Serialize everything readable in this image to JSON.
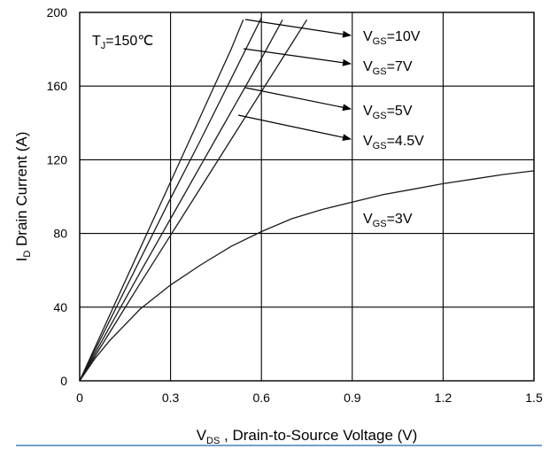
{
  "chart_data": {
    "type": "line",
    "xlabel": {
      "main": "V",
      "sub": "DS",
      "rest": " , Drain-to-Source Voltage  (V)"
    },
    "ylabel": {
      "main": "I",
      "sub": "D",
      "rest": " Drain Current (A)"
    },
    "xlim": [
      0,
      1.5
    ],
    "ylim": [
      0,
      200
    ],
    "xticks": [
      "0",
      "0.3",
      "0.6",
      "0.9",
      "1.2",
      "1.5"
    ],
    "yticks": [
      "0",
      "40",
      "80",
      "120",
      "160",
      "200"
    ],
    "grid": true,
    "condition": {
      "main": "T",
      "sub": "J",
      "rest": "=150℃"
    },
    "series": [
      {
        "name": "VGS=10V",
        "label": {
          "main": "V",
          "sub": "GS",
          "rest": "=10V"
        },
        "points": [
          [
            0,
            0
          ],
          [
            0.1,
            36
          ],
          [
            0.2,
            72
          ],
          [
            0.3,
            108
          ],
          [
            0.4,
            144
          ],
          [
            0.5,
            180
          ],
          [
            0.54,
            196
          ]
        ]
      },
      {
        "name": "VGS=7V",
        "label": {
          "main": "V",
          "sub": "GS",
          "rest": "=7V"
        },
        "points": [
          [
            0,
            0
          ],
          [
            0.1,
            33
          ],
          [
            0.2,
            66
          ],
          [
            0.3,
            99
          ],
          [
            0.4,
            131
          ],
          [
            0.5,
            164
          ],
          [
            0.6,
            197
          ]
        ]
      },
      {
        "name": "VGS=5V",
        "label": {
          "main": "V",
          "sub": "GS",
          "rest": "=5V"
        },
        "points": [
          [
            0,
            0
          ],
          [
            0.1,
            29.5
          ],
          [
            0.2,
            59
          ],
          [
            0.3,
            88
          ],
          [
            0.4,
            117
          ],
          [
            0.5,
            146
          ],
          [
            0.6,
            175
          ],
          [
            0.67,
            196
          ]
        ]
      },
      {
        "name": "VGS=4.5V",
        "label": {
          "main": "V",
          "sub": "GS",
          "rest": "=4.5V"
        },
        "points": [
          [
            0,
            0
          ],
          [
            0.1,
            26.5
          ],
          [
            0.2,
            53
          ],
          [
            0.3,
            79
          ],
          [
            0.4,
            105
          ],
          [
            0.5,
            131
          ],
          [
            0.6,
            157
          ],
          [
            0.7,
            183
          ],
          [
            0.75,
            196
          ]
        ]
      },
      {
        "name": "VGS=3V",
        "label": {
          "main": "V",
          "sub": "GS",
          "rest": "=3V"
        },
        "points": [
          [
            0,
            0
          ],
          [
            0.05,
            12
          ],
          [
            0.1,
            22
          ],
          [
            0.2,
            39
          ],
          [
            0.3,
            52
          ],
          [
            0.4,
            63
          ],
          [
            0.5,
            73
          ],
          [
            0.6,
            81
          ],
          [
            0.7,
            88
          ],
          [
            0.8,
            93
          ],
          [
            0.9,
            97
          ],
          [
            1.0,
            101
          ],
          [
            1.1,
            104
          ],
          [
            1.2,
            107
          ],
          [
            1.3,
            109.5
          ],
          [
            1.4,
            112
          ],
          [
            1.5,
            114
          ]
        ]
      }
    ]
  }
}
